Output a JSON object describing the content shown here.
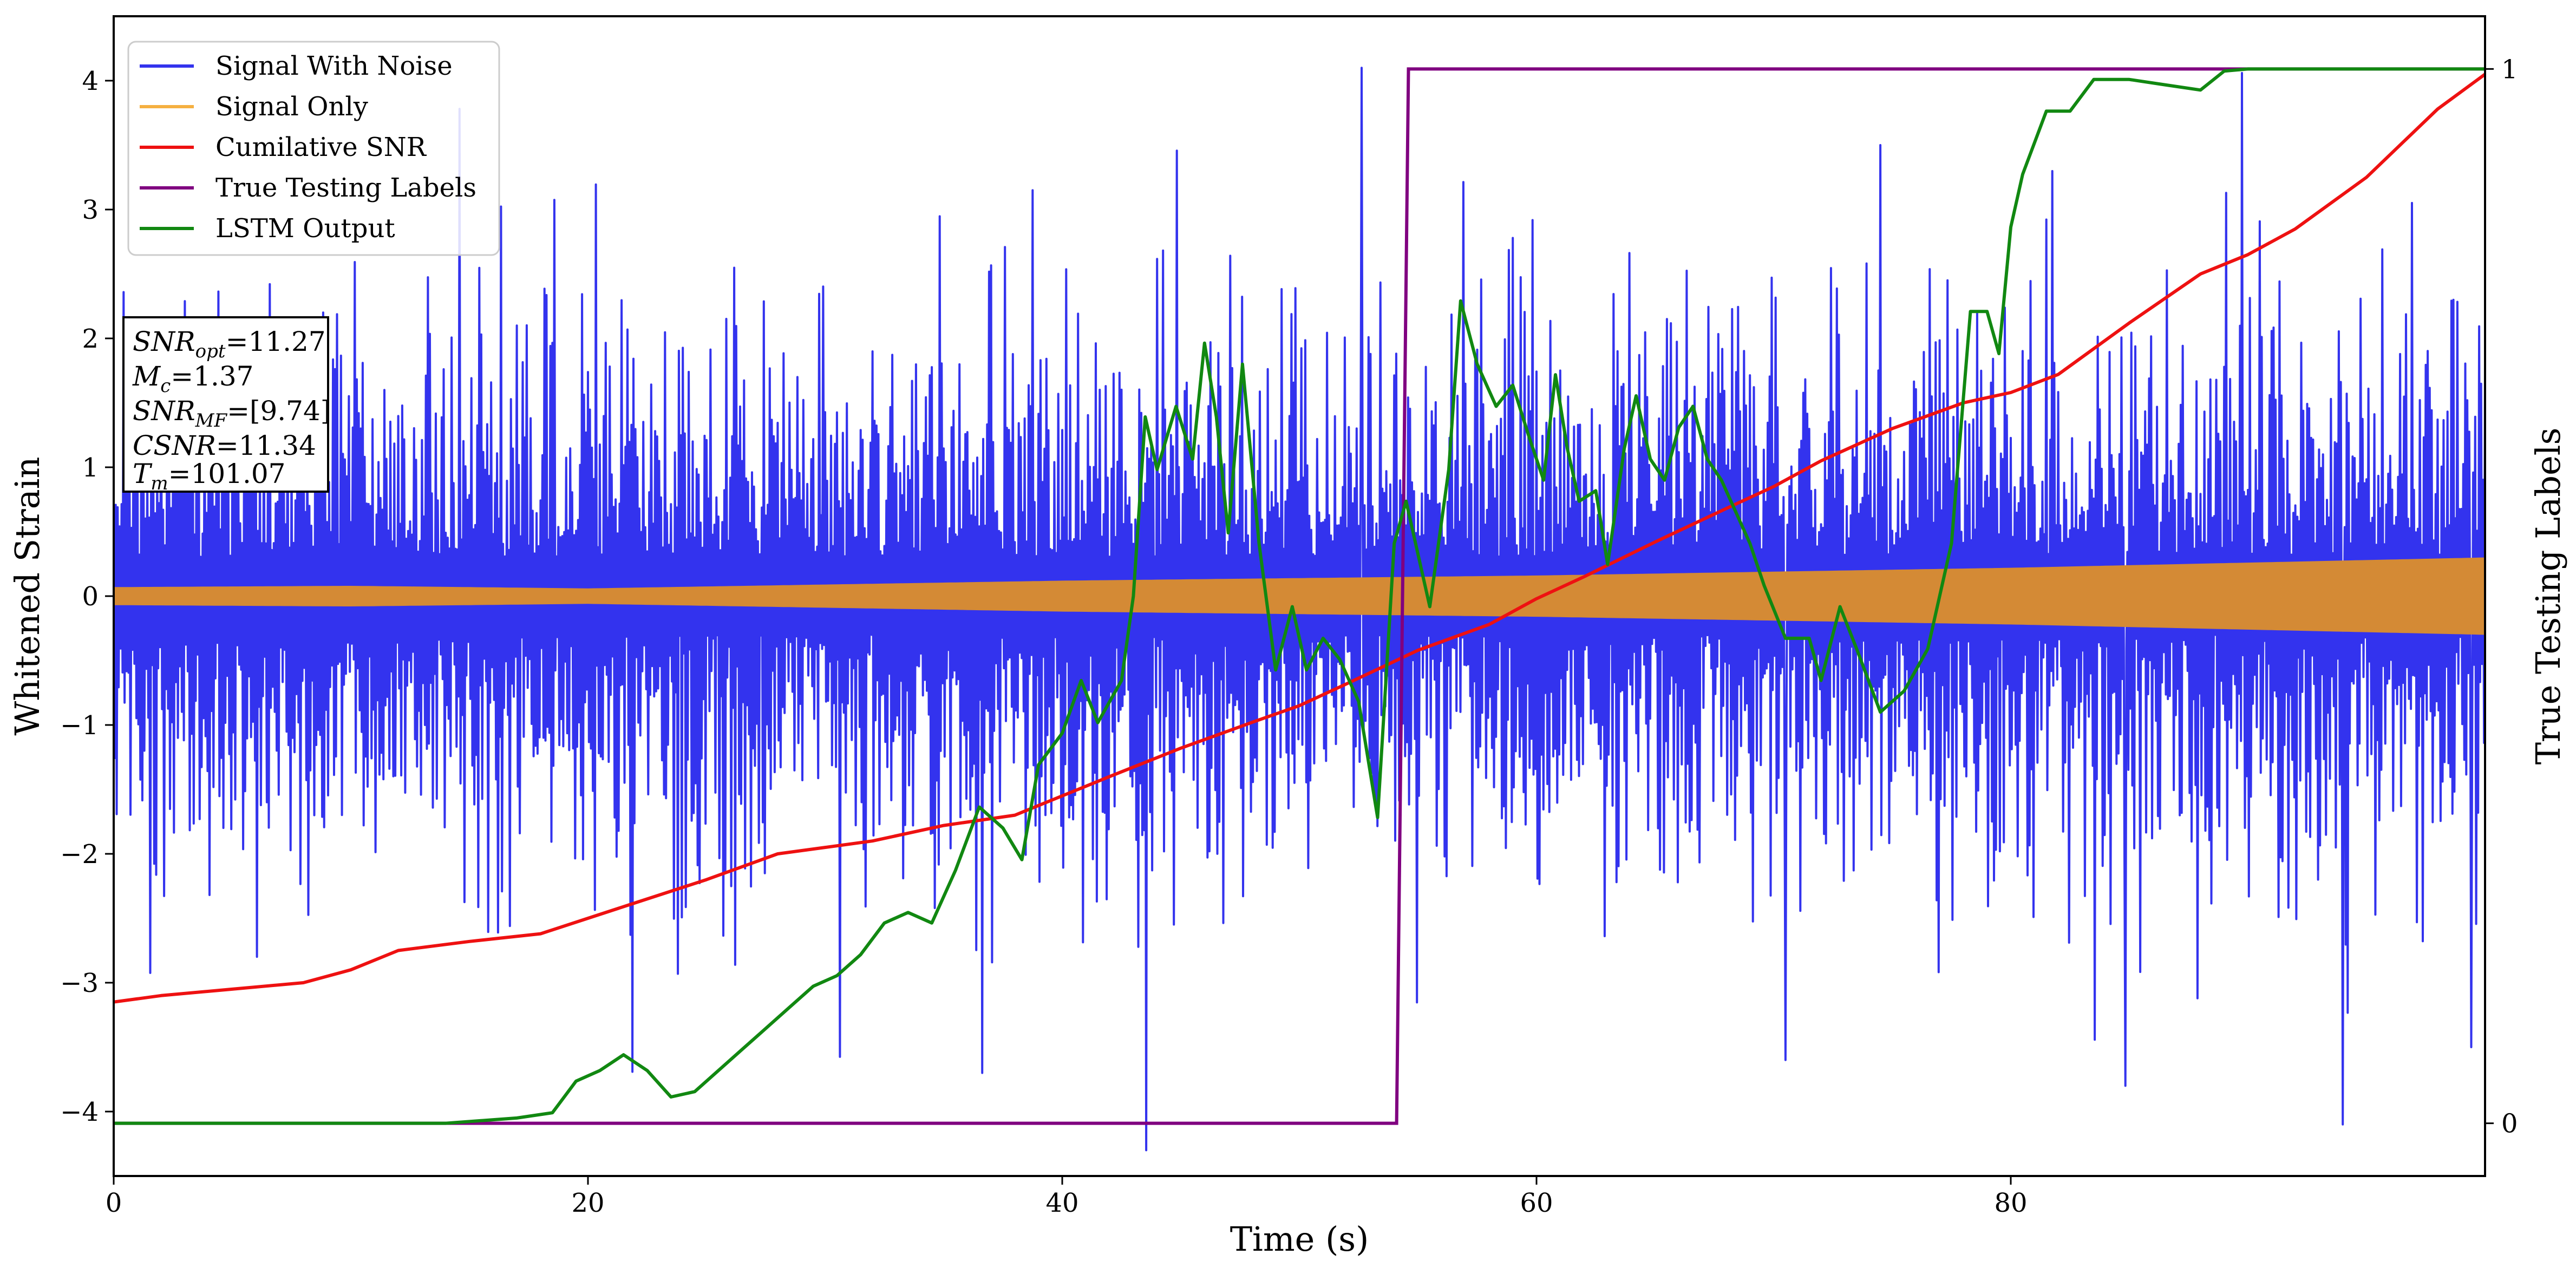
{
  "chart_data": {
    "type": "line",
    "xlabel": "Time (s)",
    "ylabel_left": "Whitened Strain",
    "ylabel_right": "True Testing Labels",
    "xlim": [
      0,
      100
    ],
    "ylim_left": [
      -4.5,
      4.5
    ],
    "ylim_right": [
      -0.05,
      1.05
    ],
    "x_ticks": [
      0,
      20,
      40,
      60,
      80
    ],
    "y_ticks_left": [
      -4,
      -3,
      -2,
      -1,
      0,
      1,
      2,
      3,
      4
    ],
    "y_ticks_right": [
      0,
      1
    ],
    "grid": false,
    "legend_position": "upper-left",
    "series": [
      {
        "name": "Signal With Noise",
        "color": "#3333ee",
        "axis": "left",
        "kind": "noise",
        "noise_sigma": 1.0,
        "duration": 100,
        "spike_extremes": [
          {
            "x": 36.6,
            "y": -3.7
          },
          {
            "x": 52.6,
            "y": 4.1
          },
          {
            "x": 70.5,
            "y": -3.6
          },
          {
            "x": 74.5,
            "y": 3.5
          },
          {
            "x": 84.8,
            "y": -3.8
          },
          {
            "x": 94.0,
            "y": -4.1
          },
          {
            "x": 99.4,
            "y": -3.5
          }
        ]
      },
      {
        "name": "Signal Only",
        "color": "#f5b041",
        "overlap_color": "#d48a35",
        "axis": "left",
        "kind": "envelope",
        "envelope": [
          {
            "x": 0,
            "y": 0.07
          },
          {
            "x": 10,
            "y": 0.08
          },
          {
            "x": 20,
            "y": 0.06
          },
          {
            "x": 30,
            "y": 0.09
          },
          {
            "x": 40,
            "y": 0.12
          },
          {
            "x": 50,
            "y": 0.14
          },
          {
            "x": 60,
            "y": 0.16
          },
          {
            "x": 70,
            "y": 0.19
          },
          {
            "x": 80,
            "y": 0.22
          },
          {
            "x": 90,
            "y": 0.26
          },
          {
            "x": 100,
            "y": 0.3
          }
        ]
      },
      {
        "name": "Cumilative SNR",
        "color": "#ee1111",
        "axis": "left",
        "points": [
          {
            "x": 0,
            "y": -3.15
          },
          {
            "x": 2,
            "y": -3.1
          },
          {
            "x": 5,
            "y": -3.05
          },
          {
            "x": 8,
            "y": -3.0
          },
          {
            "x": 10,
            "y": -2.9
          },
          {
            "x": 12,
            "y": -2.75
          },
          {
            "x": 15,
            "y": -2.68
          },
          {
            "x": 18,
            "y": -2.62
          },
          {
            "x": 20,
            "y": -2.5
          },
          {
            "x": 22,
            "y": -2.38
          },
          {
            "x": 25,
            "y": -2.2
          },
          {
            "x": 28,
            "y": -2.0
          },
          {
            "x": 30,
            "y": -1.95
          },
          {
            "x": 32,
            "y": -1.9
          },
          {
            "x": 35,
            "y": -1.78
          },
          {
            "x": 38,
            "y": -1.7
          },
          {
            "x": 40,
            "y": -1.55
          },
          {
            "x": 42,
            "y": -1.4
          },
          {
            "x": 45,
            "y": -1.18
          },
          {
            "x": 48,
            "y": -0.98
          },
          {
            "x": 50,
            "y": -0.85
          },
          {
            "x": 52,
            "y": -0.68
          },
          {
            "x": 55,
            "y": -0.42
          },
          {
            "x": 58,
            "y": -0.22
          },
          {
            "x": 60,
            "y": -0.02
          },
          {
            "x": 62,
            "y": 0.15
          },
          {
            "x": 65,
            "y": 0.42
          },
          {
            "x": 68,
            "y": 0.68
          },
          {
            "x": 70,
            "y": 0.85
          },
          {
            "x": 72,
            "y": 1.05
          },
          {
            "x": 75,
            "y": 1.3
          },
          {
            "x": 78,
            "y": 1.5
          },
          {
            "x": 80,
            "y": 1.58
          },
          {
            "x": 82,
            "y": 1.72
          },
          {
            "x": 85,
            "y": 2.12
          },
          {
            "x": 88,
            "y": 2.5
          },
          {
            "x": 90,
            "y": 2.65
          },
          {
            "x": 92,
            "y": 2.85
          },
          {
            "x": 95,
            "y": 3.25
          },
          {
            "x": 98,
            "y": 3.78
          },
          {
            "x": 100,
            "y": 4.05
          }
        ]
      },
      {
        "name": "True Testing Labels",
        "color": "#800080",
        "axis": "right",
        "points": [
          {
            "x": 0,
            "y": 0
          },
          {
            "x": 54.1,
            "y": 0
          },
          {
            "x": 54.6,
            "y": 1
          },
          {
            "x": 100,
            "y": 1
          }
        ]
      },
      {
        "name": "LSTM Output",
        "color": "#118811",
        "axis": "right",
        "points": [
          {
            "x": 0,
            "y": 0
          },
          {
            "x": 14,
            "y": 0
          },
          {
            "x": 17,
            "y": 0.005
          },
          {
            "x": 18.5,
            "y": 0.01
          },
          {
            "x": 19.5,
            "y": 0.04
          },
          {
            "x": 20.5,
            "y": 0.05
          },
          {
            "x": 21.5,
            "y": 0.065
          },
          {
            "x": 22.5,
            "y": 0.05
          },
          {
            "x": 23.5,
            "y": 0.025
          },
          {
            "x": 24.5,
            "y": 0.03
          },
          {
            "x": 25.5,
            "y": 0.05
          },
          {
            "x": 26.5,
            "y": 0.07
          },
          {
            "x": 27.5,
            "y": 0.09
          },
          {
            "x": 28.5,
            "y": 0.11
          },
          {
            "x": 29.5,
            "y": 0.13
          },
          {
            "x": 30.5,
            "y": 0.14
          },
          {
            "x": 31.5,
            "y": 0.16
          },
          {
            "x": 32.5,
            "y": 0.19
          },
          {
            "x": 33.5,
            "y": 0.2
          },
          {
            "x": 34.5,
            "y": 0.19
          },
          {
            "x": 35.5,
            "y": 0.24
          },
          {
            "x": 36.5,
            "y": 0.3
          },
          {
            "x": 37.5,
            "y": 0.28
          },
          {
            "x": 38.3,
            "y": 0.25
          },
          {
            "x": 39,
            "y": 0.34
          },
          {
            "x": 40,
            "y": 0.37
          },
          {
            "x": 40.8,
            "y": 0.42
          },
          {
            "x": 41.5,
            "y": 0.38
          },
          {
            "x": 42.5,
            "y": 0.42
          },
          {
            "x": 43,
            "y": 0.5
          },
          {
            "x": 43.5,
            "y": 0.67
          },
          {
            "x": 44,
            "y": 0.62
          },
          {
            "x": 44.8,
            "y": 0.68
          },
          {
            "x": 45.5,
            "y": 0.63
          },
          {
            "x": 46,
            "y": 0.74
          },
          {
            "x": 46.5,
            "y": 0.67
          },
          {
            "x": 47,
            "y": 0.56
          },
          {
            "x": 47.6,
            "y": 0.72
          },
          {
            "x": 48.3,
            "y": 0.55
          },
          {
            "x": 49,
            "y": 0.43
          },
          {
            "x": 49.7,
            "y": 0.49
          },
          {
            "x": 50.3,
            "y": 0.43
          },
          {
            "x": 51,
            "y": 0.46
          },
          {
            "x": 51.7,
            "y": 0.44
          },
          {
            "x": 52.5,
            "y": 0.4
          },
          {
            "x": 53.3,
            "y": 0.29
          },
          {
            "x": 54,
            "y": 0.55
          },
          {
            "x": 54.5,
            "y": 0.59
          },
          {
            "x": 55.5,
            "y": 0.49
          },
          {
            "x": 56.3,
            "y": 0.62
          },
          {
            "x": 56.8,
            "y": 0.78
          },
          {
            "x": 57.5,
            "y": 0.72
          },
          {
            "x": 58.3,
            "y": 0.68
          },
          {
            "x": 59,
            "y": 0.7
          },
          {
            "x": 59.7,
            "y": 0.65
          },
          {
            "x": 60.3,
            "y": 0.61
          },
          {
            "x": 60.8,
            "y": 0.71
          },
          {
            "x": 61.3,
            "y": 0.64
          },
          {
            "x": 61.8,
            "y": 0.59
          },
          {
            "x": 62.5,
            "y": 0.6
          },
          {
            "x": 63,
            "y": 0.53
          },
          {
            "x": 63.7,
            "y": 0.64
          },
          {
            "x": 64.2,
            "y": 0.69
          },
          {
            "x": 64.8,
            "y": 0.63
          },
          {
            "x": 65.4,
            "y": 0.61
          },
          {
            "x": 66,
            "y": 0.66
          },
          {
            "x": 66.6,
            "y": 0.68
          },
          {
            "x": 67.2,
            "y": 0.63
          },
          {
            "x": 67.8,
            "y": 0.61
          },
          {
            "x": 68.4,
            "y": 0.58
          },
          {
            "x": 69,
            "y": 0.55
          },
          {
            "x": 69.6,
            "y": 0.51
          },
          {
            "x": 70.5,
            "y": 0.46
          },
          {
            "x": 71.5,
            "y": 0.46
          },
          {
            "x": 72,
            "y": 0.42
          },
          {
            "x": 72.8,
            "y": 0.49
          },
          {
            "x": 73.5,
            "y": 0.45
          },
          {
            "x": 74.5,
            "y": 0.39
          },
          {
            "x": 75.5,
            "y": 0.41
          },
          {
            "x": 76.5,
            "y": 0.45
          },
          {
            "x": 77.5,
            "y": 0.55
          },
          {
            "x": 78.3,
            "y": 0.77
          },
          {
            "x": 79,
            "y": 0.77
          },
          {
            "x": 79.5,
            "y": 0.73
          },
          {
            "x": 80,
            "y": 0.85
          },
          {
            "x": 80.5,
            "y": 0.9
          },
          {
            "x": 81.5,
            "y": 0.96
          },
          {
            "x": 82.5,
            "y": 0.96
          },
          {
            "x": 83.5,
            "y": 0.99
          },
          {
            "x": 85,
            "y": 0.99
          },
          {
            "x": 86.5,
            "y": 0.985
          },
          {
            "x": 88,
            "y": 0.98
          },
          {
            "x": 89,
            "y": 0.998
          },
          {
            "x": 90,
            "y": 1
          },
          {
            "x": 100,
            "y": 1
          }
        ]
      }
    ],
    "annotations": {
      "snr_opt": "=11.27",
      "mc": "=1.37",
      "snr_mf": "=[9.74]",
      "csnr": "=11.34",
      "tm": "=101.07"
    }
  }
}
